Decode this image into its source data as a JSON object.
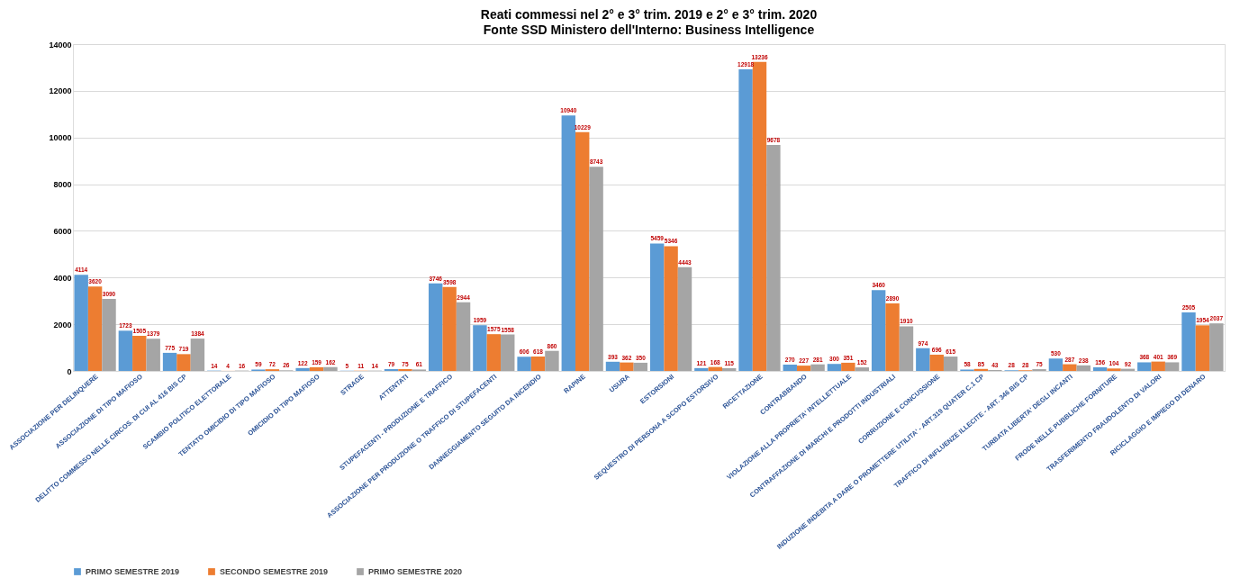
{
  "chart_data": {
    "type": "bar",
    "title": "Reati commessi nel 2° e 3° trim. 2019 e 2° e 3° trim. 2020",
    "subtitle": "Fonte SSD Ministero dell'Interno: Business Intelligence",
    "categories": [
      "ASSOCIAZIONE PER DELINQUERE",
      "ASSOCIAZIONE DI TIPO MAFIOSO",
      "DELITTO COMMESSO NELLE CIRCOS. DI CUI AL 416 BIS CP",
      "SCAMBIO POLITICO ELETTORALE",
      "TENTATO OMICIDIO DI TIPO MAFIOSO",
      "OMICIDIO DI TIPO MAFIOSO",
      "STRAGE",
      "ATTENTATI",
      "STUPEFACENTI - PRODUZIONE E TRAFFICO",
      "ASSOCIAZIONE PER PRODUZIONE O TRAFFICO DI STUPEFACENTI",
      "DANNEGGIAMENTO SEGUITO DA INCENDIO",
      "RAPINE",
      "USURA",
      "ESTORSIONI",
      "SEQUESTRO DI PERSONA A SCOPO ESTORSIVO",
      "RICETTAZIONE",
      "CONTRABBANDO",
      "VIOLAZIONE ALLA PROPRIETA' INTELLETTUALE",
      "CONTRAFFAZIONE DI MARCHI E PRODOTTI INDUSTRIALI",
      "CORRUZIONE E CONCUSSIONE",
      "INDUZIONE INDEBITA A DARE O PROMETTERE UTILITA' - ART.319 QUATER C.1 CP",
      "TRAFFICO DI INFLUENZE ILLECITE - ART. 346 BIS CP",
      "TURBATA LIBERTA' DEGLI INCANTI",
      "FRODE NELLE PUBBLICHE FORNITURE",
      "TRASFERIMENTO FRAUDOLENTO DI VALORI",
      "RICICLAGGIO E IMPIEGO DI DENARO"
    ],
    "series": [
      {
        "name": "PRIMO SEMESTRE 2019",
        "color": "#5b9bd5",
        "values": [
          4114,
          1723,
          775,
          14,
          59,
          122,
          5,
          79,
          3746,
          1959,
          606,
          10940,
          393,
          5459,
          121,
          12918,
          270,
          300,
          3460,
          974,
          58,
          28,
          530,
          156,
          368,
          2505
        ]
      },
      {
        "name": "SECONDO SEMESTRE 2019",
        "color": "#ed7d31",
        "values": [
          3620,
          1505,
          719,
          4,
          72,
          159,
          11,
          75,
          3598,
          1575,
          618,
          10229,
          362,
          5346,
          168,
          13236,
          227,
          351,
          2890,
          696,
          85,
          28,
          287,
          104,
          401,
          1954
        ]
      },
      {
        "name": "PRIMO SEMESTRE 2020",
        "color": "#a5a5a5",
        "values": [
          3090,
          1379,
          1384,
          16,
          26,
          162,
          14,
          61,
          2944,
          1558,
          860,
          8743,
          350,
          4443,
          115,
          9678,
          281,
          152,
          1910,
          615,
          43,
          75,
          238,
          92,
          369,
          2037
        ]
      }
    ],
    "ylim": [
      0,
      14000
    ],
    "yticks": [
      0,
      2000,
      4000,
      6000,
      8000,
      10000,
      12000,
      14000
    ],
    "grid": "y",
    "legend": "bottom",
    "data_labels": true
  }
}
